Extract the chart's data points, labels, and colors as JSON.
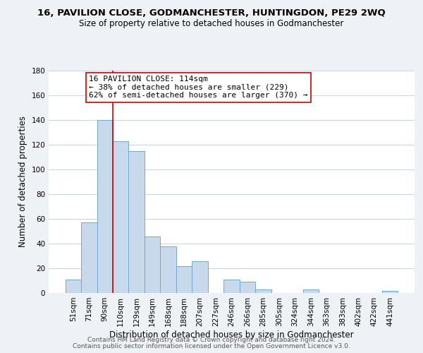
{
  "title": "16, PAVILION CLOSE, GODMANCHESTER, HUNTINGDON, PE29 2WQ",
  "subtitle": "Size of property relative to detached houses in Godmanchester",
  "xlabel": "Distribution of detached houses by size in Godmanchester",
  "ylabel": "Number of detached properties",
  "bar_color": "#c8d9ec",
  "bar_edge_color": "#6fa8d0",
  "categories": [
    "51sqm",
    "71sqm",
    "90sqm",
    "110sqm",
    "129sqm",
    "149sqm",
    "168sqm",
    "188sqm",
    "207sqm",
    "227sqm",
    "246sqm",
    "266sqm",
    "285sqm",
    "305sqm",
    "324sqm",
    "344sqm",
    "363sqm",
    "383sqm",
    "402sqm",
    "422sqm",
    "441sqm"
  ],
  "values": [
    11,
    57,
    140,
    123,
    115,
    46,
    38,
    22,
    26,
    0,
    11,
    9,
    3,
    0,
    0,
    3,
    0,
    0,
    0,
    0,
    2
  ],
  "ylim": [
    0,
    180
  ],
  "yticks": [
    0,
    20,
    40,
    60,
    80,
    100,
    120,
    140,
    160,
    180
  ],
  "property_line_idx": 3,
  "property_line_color": "#cc0000",
  "annotation_line1": "16 PAVILION CLOSE: 114sqm",
  "annotation_line2": "← 38% of detached houses are smaller (229)",
  "annotation_line3": "62% of semi-detached houses are larger (370) →",
  "annotation_box_color": "#ffffff",
  "annotation_box_edge": "#cc0000",
  "footer_line1": "Contains HM Land Registry data © Crown copyright and database right 2024.",
  "footer_line2": "Contains public sector information licensed under the Open Government Licence v3.0.",
  "background_color": "#eef2f7",
  "plot_background_color": "#ffffff",
  "grid_color": "#c8d8e8",
  "title_fontsize": 9.5,
  "subtitle_fontsize": 8.5,
  "axis_label_fontsize": 8.5,
  "tick_fontsize": 7.5,
  "annotation_fontsize": 8.0,
  "footer_fontsize": 6.5
}
